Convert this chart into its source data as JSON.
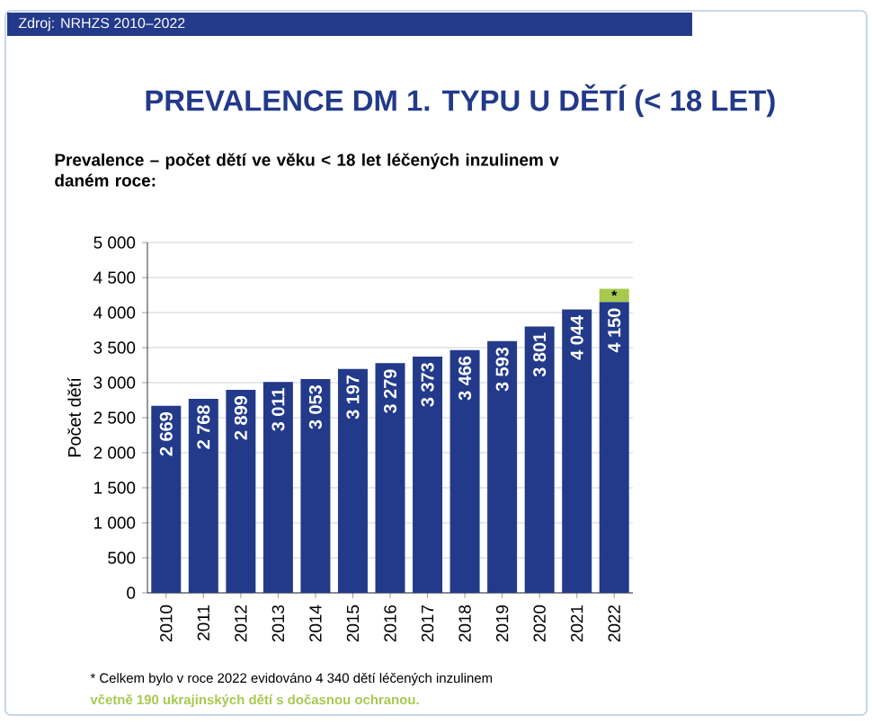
{
  "chart_data": {
    "type": "bar",
    "title": "PREVALENCE DM 1. TYPU U DĚTÍ (< 18 LET)",
    "subtitle": "Prevalence – počet dětí ve věku < 18 let léčených inzulinem v daném roce:",
    "ylabel": "Počet dětí",
    "annotations": [
      "Zdroj: NRHZS 2010–2022",
      "* Celkem bylo v roce 2022 evidováno 4 340 dětí léčených inzulinem",
      "včetně 190 ukrajinských dětí s dočasnou ochranou."
    ],
    "categories": [
      "2010",
      "2011",
      "2012",
      "2013",
      "2014",
      "2015",
      "2016",
      "2017",
      "2018",
      "2019",
      "2020",
      "2021",
      "2022"
    ],
    "stacked": true,
    "series": [
      {
        "color": "#233a8a",
        "values": [
          2669,
          2768,
          2899,
          3011,
          3053,
          3197,
          3279,
          3373,
          3466,
          3593,
          3801,
          4044,
          4150
        ],
        "value_labels": [
          "2 669",
          "2 768",
          "2 899",
          "3 011",
          "3 053",
          "3 197",
          "3 279",
          "3 373",
          "3 466",
          "3 593",
          "3 801",
          "4 044",
          "4 150"
        ]
      },
      {
        "color": "#a6c94f",
        "values": [
          null,
          null,
          null,
          null,
          null,
          null,
          null,
          null,
          null,
          null,
          null,
          null,
          190
        ],
        "value_labels": [
          null,
          null,
          null,
          null,
          null,
          null,
          null,
          null,
          null,
          null,
          null,
          null,
          "*"
        ]
      }
    ],
    "ylim": [
      0,
      5000
    ],
    "yticks": [
      0,
      500,
      {
        "value": 1000,
        "label": "1 000"
      },
      {
        "value": 1500,
        "label": "1 500"
      },
      {
        "value": 2000,
        "label": "2 000"
      },
      {
        "value": 2500,
        "label": "2 500"
      },
      {
        "value": 3000,
        "label": "3 000"
      },
      {
        "value": 3500,
        "label": "3 500"
      },
      {
        "value": 4000,
        "label": "4 000"
      },
      {
        "value": 4500,
        "label": "4 500"
      },
      {
        "value": 5000,
        "label": "5 000"
      }
    ],
    "grid": "y"
  }
}
